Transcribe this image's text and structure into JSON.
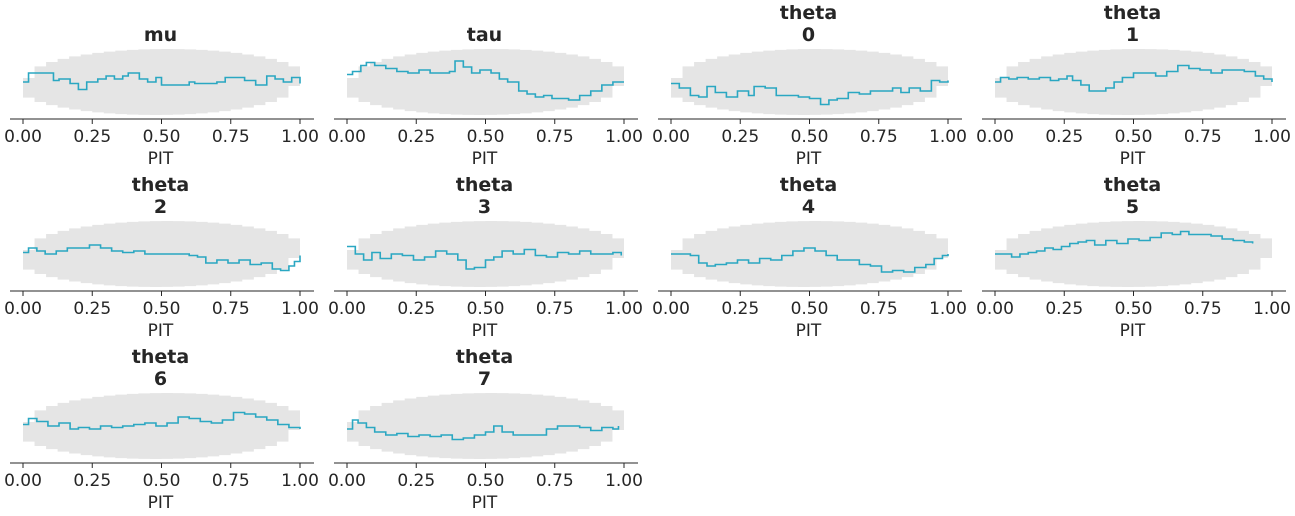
{
  "colors": {
    "line": "#2aa7c2",
    "band": "#e5e5e5",
    "text": "#262626"
  },
  "chart_data": [
    {
      "type": "line",
      "title": [
        "mu"
      ],
      "xlabel": "PIT",
      "xlim": [
        0,
        1
      ],
      "xticks": [
        "0.00",
        "0.25",
        "0.50",
        "0.75",
        "1.00"
      ],
      "x": [
        0,
        0.02,
        0.07,
        0.11,
        0.13,
        0.17,
        0.2,
        0.23,
        0.27,
        0.3,
        0.33,
        0.36,
        0.38,
        0.42,
        0.45,
        0.48,
        0.5,
        0.54,
        0.57,
        0.6,
        0.62,
        0.66,
        0.7,
        0.73,
        0.76,
        0.8,
        0.84,
        0.88,
        0.91,
        0.94,
        0.97,
        1
      ],
      "y": [
        0.0,
        0.3,
        0.3,
        0.05,
        0.1,
        -0.05,
        -0.25,
        0.0,
        0.1,
        0.2,
        0.1,
        0.2,
        0.3,
        0.1,
        0.0,
        0.15,
        -0.1,
        -0.1,
        -0.1,
        0.0,
        -0.05,
        -0.05,
        0.0,
        0.15,
        0.15,
        0.05,
        -0.1,
        0.2,
        0.1,
        0.0,
        0.15,
        -0.05
      ]
    },
    {
      "type": "line",
      "title": [
        "tau"
      ],
      "xlabel": "PIT",
      "xlim": [
        0,
        1
      ],
      "xticks": [
        "0.00",
        "0.25",
        "0.50",
        "0.75",
        "1.00"
      ],
      "x": [
        0,
        0.02,
        0.05,
        0.07,
        0.1,
        0.14,
        0.18,
        0.22,
        0.26,
        0.3,
        0.34,
        0.37,
        0.39,
        0.42,
        0.45,
        0.48,
        0.52,
        0.55,
        0.58,
        0.62,
        0.65,
        0.68,
        0.71,
        0.74,
        0.77,
        0.8,
        0.84,
        0.88,
        0.92,
        0.96,
        1
      ],
      "y": [
        0.25,
        0.35,
        0.55,
        0.65,
        0.55,
        0.45,
        0.35,
        0.3,
        0.4,
        0.3,
        0.3,
        0.35,
        0.7,
        0.5,
        0.3,
        0.4,
        0.3,
        0.1,
        0.0,
        -0.3,
        -0.4,
        -0.5,
        -0.45,
        -0.55,
        -0.55,
        -0.6,
        -0.45,
        -0.3,
        -0.1,
        0.0,
        0.0
      ]
    },
    {
      "type": "line",
      "title": [
        "theta",
        "0"
      ],
      "xlabel": "PIT",
      "xlim": [
        0,
        1
      ],
      "xticks": [
        "0.00",
        "0.25",
        "0.50",
        "0.75",
        "1.00"
      ],
      "x": [
        0,
        0.03,
        0.07,
        0.1,
        0.13,
        0.16,
        0.2,
        0.24,
        0.28,
        0.3,
        0.34,
        0.38,
        0.42,
        0.46,
        0.5,
        0.54,
        0.57,
        0.6,
        0.64,
        0.68,
        0.72,
        0.76,
        0.8,
        0.83,
        0.86,
        0.9,
        0.94,
        0.97,
        1
      ],
      "y": [
        -0.05,
        -0.2,
        -0.45,
        -0.5,
        -0.15,
        -0.35,
        -0.5,
        -0.3,
        -0.45,
        -0.15,
        -0.2,
        -0.45,
        -0.45,
        -0.5,
        -0.55,
        -0.75,
        -0.6,
        -0.55,
        -0.35,
        -0.4,
        -0.3,
        -0.3,
        -0.2,
        -0.35,
        -0.2,
        -0.3,
        0.05,
        0.0,
        0.05
      ]
    },
    {
      "type": "line",
      "title": [
        "theta",
        "1"
      ],
      "xlabel": "PIT",
      "xlim": [
        0,
        1
      ],
      "xticks": [
        "0.00",
        "0.25",
        "0.50",
        "0.75",
        "1.00"
      ],
      "x": [
        0,
        0.02,
        0.05,
        0.08,
        0.12,
        0.16,
        0.2,
        0.23,
        0.26,
        0.28,
        0.31,
        0.34,
        0.37,
        0.4,
        0.43,
        0.46,
        0.5,
        0.54,
        0.58,
        0.62,
        0.66,
        0.7,
        0.74,
        0.78,
        0.82,
        0.86,
        0.9,
        0.94,
        0.97,
        1
      ],
      "y": [
        0.0,
        0.15,
        0.1,
        0.15,
        0.1,
        0.15,
        0.05,
        0.1,
        0.2,
        0.05,
        -0.1,
        -0.3,
        -0.3,
        -0.2,
        0.0,
        0.15,
        0.3,
        0.3,
        0.2,
        0.35,
        0.55,
        0.45,
        0.4,
        0.3,
        0.4,
        0.4,
        0.35,
        0.2,
        0.1,
        0.0
      ]
    },
    {
      "type": "line",
      "title": [
        "theta",
        "2"
      ],
      "xlabel": "PIT",
      "xlim": [
        0,
        1
      ],
      "xticks": [
        "0.00",
        "0.25",
        "0.50",
        "0.75",
        "1.00"
      ],
      "x": [
        0,
        0.02,
        0.05,
        0.08,
        0.12,
        0.16,
        0.2,
        0.24,
        0.28,
        0.32,
        0.36,
        0.4,
        0.44,
        0.48,
        0.52,
        0.56,
        0.6,
        0.63,
        0.66,
        0.7,
        0.74,
        0.78,
        0.82,
        0.86,
        0.9,
        0.93,
        0.96,
        0.98,
        1
      ],
      "y": [
        0.05,
        0.2,
        0.1,
        0.0,
        0.1,
        0.2,
        0.2,
        0.3,
        0.2,
        0.1,
        0.05,
        0.1,
        0.0,
        0.0,
        0.0,
        0.0,
        -0.05,
        -0.1,
        -0.3,
        -0.2,
        -0.3,
        -0.2,
        -0.35,
        -0.3,
        -0.5,
        -0.55,
        -0.4,
        -0.25,
        -0.05
      ]
    },
    {
      "type": "line",
      "title": [
        "theta",
        "3"
      ],
      "xlabel": "PIT",
      "xlim": [
        0,
        1
      ],
      "xticks": [
        "0.00",
        "0.25",
        "0.50",
        "0.75",
        "1.00"
      ],
      "x": [
        0,
        0.03,
        0.06,
        0.09,
        0.12,
        0.16,
        0.2,
        0.24,
        0.28,
        0.32,
        0.36,
        0.4,
        0.43,
        0.46,
        0.5,
        0.53,
        0.56,
        0.6,
        0.64,
        0.68,
        0.72,
        0.76,
        0.8,
        0.84,
        0.88,
        0.92,
        0.96,
        0.99
      ],
      "y": [
        0.25,
        0.0,
        -0.2,
        0.05,
        -0.15,
        0.0,
        -0.05,
        -0.2,
        -0.1,
        0.1,
        0.0,
        -0.2,
        -0.5,
        -0.45,
        -0.2,
        -0.1,
        0.1,
        0.0,
        0.15,
        -0.05,
        -0.1,
        0.05,
        0.0,
        0.1,
        0.0,
        0.0,
        0.05,
        -0.05
      ]
    },
    {
      "type": "line",
      "title": [
        "theta",
        "4"
      ],
      "xlabel": "PIT",
      "xlim": [
        0,
        1
      ],
      "xticks": [
        "0.00",
        "0.25",
        "0.50",
        "0.75",
        "1.00"
      ],
      "x": [
        0,
        0.03,
        0.07,
        0.1,
        0.13,
        0.16,
        0.2,
        0.24,
        0.28,
        0.32,
        0.36,
        0.4,
        0.44,
        0.48,
        0.52,
        0.56,
        0.6,
        0.64,
        0.68,
        0.72,
        0.76,
        0.8,
        0.84,
        0.88,
        0.92,
        0.95,
        0.98,
        1
      ],
      "y": [
        0.0,
        0.0,
        -0.05,
        -0.3,
        -0.4,
        -0.35,
        -0.3,
        -0.2,
        -0.3,
        -0.15,
        -0.2,
        -0.05,
        0.1,
        0.2,
        0.1,
        -0.05,
        -0.2,
        -0.2,
        -0.35,
        -0.4,
        -0.6,
        -0.55,
        -0.6,
        -0.45,
        -0.35,
        -0.15,
        -0.05,
        0.0
      ]
    },
    {
      "type": "line",
      "title": [
        "theta",
        "5"
      ],
      "xlabel": "PIT",
      "xlim": [
        0,
        1
      ],
      "xticks": [
        "0.00",
        "0.25",
        "0.50",
        "0.75",
        "1.00"
      ],
      "x": [
        0,
        0.03,
        0.06,
        0.09,
        0.12,
        0.15,
        0.18,
        0.21,
        0.24,
        0.27,
        0.3,
        0.33,
        0.36,
        0.4,
        0.44,
        0.48,
        0.52,
        0.56,
        0.6,
        0.64,
        0.67,
        0.7,
        0.74,
        0.78,
        0.82,
        0.86,
        0.9,
        0.93
      ],
      "y": [
        0.0,
        0.0,
        -0.1,
        0.0,
        0.05,
        0.1,
        0.2,
        0.15,
        0.25,
        0.35,
        0.4,
        0.45,
        0.3,
        0.45,
        0.35,
        0.5,
        0.45,
        0.55,
        0.7,
        0.65,
        0.75,
        0.65,
        0.65,
        0.6,
        0.5,
        0.45,
        0.4,
        0.35
      ]
    },
    {
      "type": "line",
      "title": [
        "theta",
        "6"
      ],
      "xlabel": "PIT",
      "xlim": [
        0,
        1
      ],
      "xticks": [
        "0.00",
        "0.25",
        "0.50",
        "0.75",
        "1.00"
      ],
      "x": [
        0,
        0.02,
        0.05,
        0.09,
        0.13,
        0.17,
        0.2,
        0.24,
        0.28,
        0.32,
        0.36,
        0.4,
        0.44,
        0.48,
        0.52,
        0.56,
        0.6,
        0.64,
        0.68,
        0.72,
        0.76,
        0.8,
        0.84,
        0.88,
        0.92,
        0.96,
        1
      ],
      "y": [
        0.05,
        0.25,
        0.15,
        0.0,
        0.1,
        -0.1,
        -0.05,
        -0.1,
        0.0,
        -0.05,
        0.0,
        0.05,
        0.1,
        0.0,
        0.1,
        0.3,
        0.25,
        0.15,
        0.1,
        0.2,
        0.45,
        0.4,
        0.3,
        0.2,
        0.05,
        -0.05,
        -0.1
      ]
    },
    {
      "type": "line",
      "title": [
        "theta",
        "7"
      ],
      "xlabel": "PIT",
      "xlim": [
        0,
        1
      ],
      "xticks": [
        "0.00",
        "0.25",
        "0.50",
        "0.75",
        "1.00"
      ],
      "x": [
        0,
        0.02,
        0.04,
        0.07,
        0.1,
        0.14,
        0.18,
        0.22,
        0.26,
        0.3,
        0.34,
        0.38,
        0.42,
        0.46,
        0.5,
        0.53,
        0.56,
        0.6,
        0.64,
        0.68,
        0.72,
        0.76,
        0.8,
        0.84,
        0.88,
        0.92,
        0.96,
        0.98
      ],
      "y": [
        -0.1,
        0.2,
        0.1,
        -0.05,
        -0.2,
        -0.3,
        -0.25,
        -0.35,
        -0.3,
        -0.35,
        -0.3,
        -0.45,
        -0.4,
        -0.3,
        -0.2,
        0.0,
        -0.2,
        -0.3,
        -0.3,
        -0.3,
        -0.1,
        0.0,
        0.0,
        -0.05,
        -0.15,
        -0.05,
        -0.1,
        0.0
      ]
    }
  ]
}
